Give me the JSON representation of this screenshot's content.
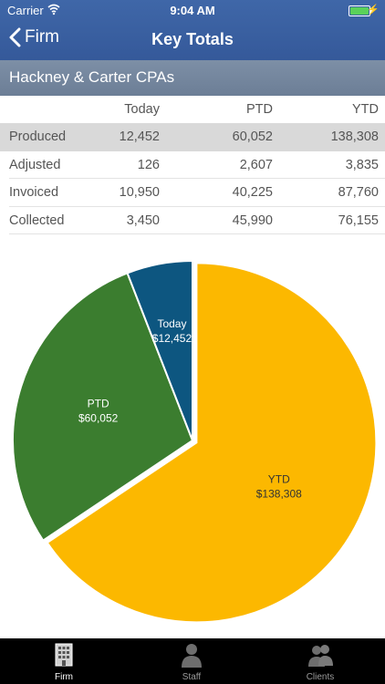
{
  "status_bar": {
    "carrier": "Carrier",
    "time": "9:04 AM"
  },
  "nav": {
    "back_label": "Firm",
    "title": "Key Totals"
  },
  "firm_name": "Hackney & Carter CPAs",
  "table": {
    "headers": [
      "",
      "Today",
      "PTD",
      "YTD"
    ],
    "rows": [
      {
        "label": "Produced",
        "today": "12,452",
        "ptd": "60,052",
        "ytd": "138,308"
      },
      {
        "label": "Adjusted",
        "today": "126",
        "ptd": "2,607",
        "ytd": "3,835"
      },
      {
        "label": "Invoiced",
        "today": "10,950",
        "ptd": "40,225",
        "ytd": "87,760"
      },
      {
        "label": "Collected",
        "today": "3,450",
        "ptd": "45,990",
        "ytd": "76,155"
      }
    ]
  },
  "chart_data": {
    "type": "pie",
    "slices": [
      {
        "label": "YTD",
        "value": 138308,
        "value_label": "$138,308",
        "color": "#fcb800"
      },
      {
        "label": "PTD",
        "value": 60052,
        "value_label": "$60,052",
        "color": "#3b7d2f"
      },
      {
        "label": "Today",
        "value": 12452,
        "value_label": "$12,452",
        "color": "#0d5680"
      }
    ]
  },
  "tabs": [
    {
      "label": "Firm",
      "icon": "building-icon",
      "active": true
    },
    {
      "label": "Staff",
      "icon": "person-icon",
      "active": false
    },
    {
      "label": "Clients",
      "icon": "people-icon",
      "active": false
    }
  ],
  "colors": {
    "nav": "#3a5fa0",
    "firm_bar": "#75889f",
    "tab_bar": "#000000"
  }
}
